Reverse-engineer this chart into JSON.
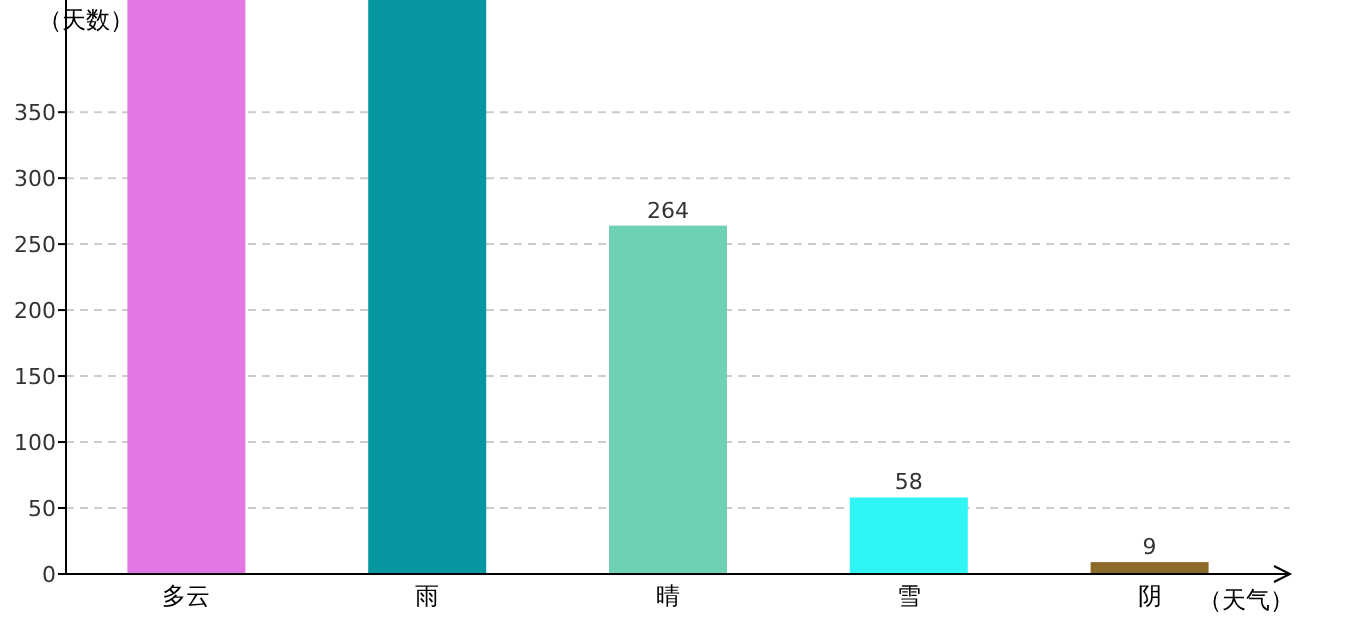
{
  "chart_data": {
    "type": "bar",
    "ylabel": "（天数）",
    "xlabel": "（天气）",
    "categories": [
      "多云",
      "雨",
      "晴",
      "雪",
      "阴"
    ],
    "values": [
      435,
      435,
      264,
      58,
      9
    ],
    "colors": [
      "#e276e2",
      "#05969f",
      "#6fd1b4",
      "#2ff5f5",
      "#8c6a2a"
    ],
    "value_labels": [
      null,
      null,
      "264",
      "58",
      "9"
    ],
    "ylim": [
      0,
      435
    ],
    "yticks": [
      0,
      50,
      100,
      150,
      200,
      250,
      300,
      350
    ],
    "grid": "y"
  }
}
